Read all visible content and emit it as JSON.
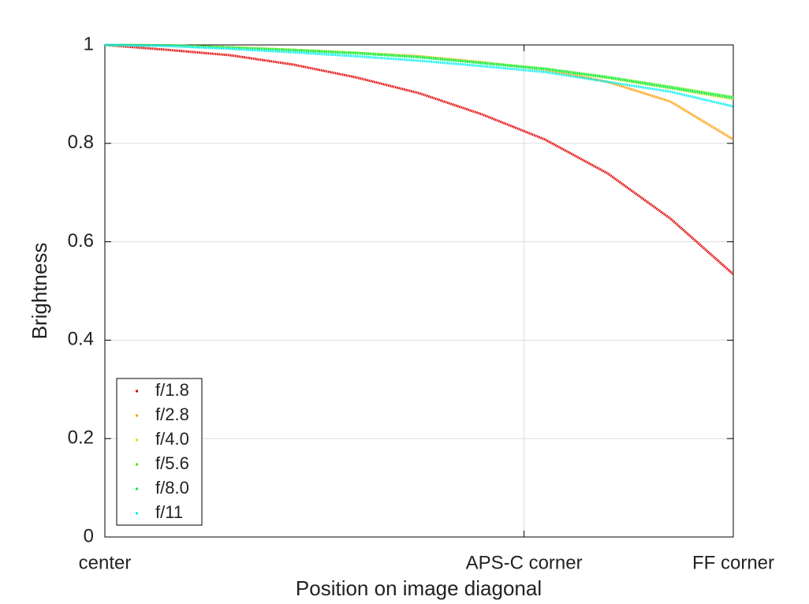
{
  "chart_data": {
    "type": "line",
    "xlabel": "Position on image diagonal",
    "ylabel": "Brightness",
    "x": [
      0,
      0.1,
      0.2,
      0.3,
      0.4,
      0.5,
      0.6,
      0.7,
      0.8,
      0.9,
      1
    ],
    "series": [
      {
        "name": "f/1.8",
        "color": "#e00000",
        "values": [
          1,
          0.99,
          0.979,
          0.96,
          0.934,
          0.902,
          0.859,
          0.808,
          0.739,
          0.647,
          0.534
        ]
      },
      {
        "name": "f/2.8",
        "color": "#ff9900",
        "values": [
          1,
          0.999,
          0.995,
          0.99,
          0.984,
          0.977,
          0.965,
          0.95,
          0.925,
          0.885,
          0.808
        ]
      },
      {
        "name": "f/4.0",
        "color": "#dddd00",
        "values": [
          1,
          0.999,
          0.995,
          0.99,
          0.984,
          0.976,
          0.964,
          0.951,
          0.933,
          0.912,
          0.89
        ]
      },
      {
        "name": "f/5.6",
        "color": "#44ee00",
        "values": [
          1,
          0.999,
          0.995,
          0.99,
          0.984,
          0.976,
          0.964,
          0.952,
          0.935,
          0.915,
          0.894
        ]
      },
      {
        "name": "f/8.0",
        "color": "#00ee44",
        "values": [
          1,
          0.999,
          0.994,
          0.989,
          0.983,
          0.975,
          0.963,
          0.951,
          0.934,
          0.913,
          0.892
        ]
      },
      {
        "name": "f/11",
        "color": "#00eeee",
        "values": [
          1,
          0.998,
          0.992,
          0.985,
          0.977,
          0.968,
          0.957,
          0.945,
          0.925,
          0.905,
          0.875
        ]
      }
    ],
    "xlim": [
      0,
      1
    ],
    "xticks": [
      {
        "value": 0,
        "label": "center"
      },
      {
        "value": 0.667,
        "label": "APS-C corner"
      },
      {
        "value": 1,
        "label": "FF corner"
      }
    ],
    "ylim": [
      0,
      1
    ],
    "yticks": [
      0,
      0.2,
      0.4,
      0.6,
      0.8,
      1
    ],
    "grid": true,
    "legend": "lower left"
  }
}
